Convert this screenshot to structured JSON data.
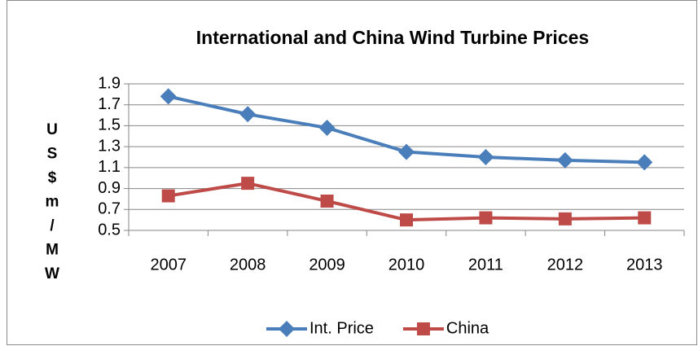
{
  "chart_data": {
    "type": "line",
    "title": "International and China Wind Turbine Prices",
    "y_label": "US$m/MW",
    "categories": [
      "2007",
      "2008",
      "2009",
      "2010",
      "2011",
      "2012",
      "2013"
    ],
    "series": [
      {
        "name": "Int. Price",
        "color": "#4a7ebb",
        "marker": "diamond",
        "values": [
          1.78,
          1.61,
          1.48,
          1.25,
          1.2,
          1.17,
          1.15
        ]
      },
      {
        "name": "China",
        "color": "#be4b48",
        "marker": "square",
        "values": [
          0.83,
          0.95,
          0.78,
          0.6,
          0.62,
          0.61,
          0.62
        ]
      }
    ],
    "ylim": [
      0.5,
      1.9
    ],
    "yticks": [
      0.5,
      0.7,
      0.9,
      1.1,
      1.3,
      1.5,
      1.7,
      1.9
    ],
    "grid": true,
    "legend": "bottom"
  }
}
